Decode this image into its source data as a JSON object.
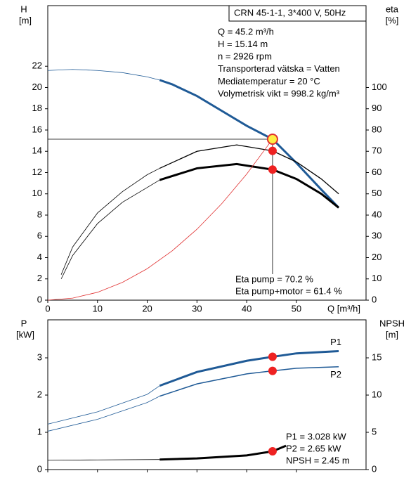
{
  "chart_data": [
    {
      "type": "line",
      "title": "CRN 45-1-1, 3*400 V, 50Hz",
      "ylabel": "H",
      "yunit": "[m]",
      "y2label": "eta",
      "y2unit": "[%]",
      "xlabel": "Q [m³/h]",
      "xlim": [
        0,
        64
      ],
      "xticks": [
        0,
        10,
        20,
        30,
        40,
        50
      ],
      "show_xtick_labels": true,
      "ylim": [
        0,
        27.7
      ],
      "yticks": [
        0,
        2,
        4,
        6,
        8,
        10,
        12,
        14,
        16,
        18,
        20,
        22
      ],
      "y2lim": [
        0,
        138.5
      ],
      "y2ticks": [
        0,
        10,
        20,
        30,
        40,
        50,
        60,
        70,
        80,
        90,
        100
      ],
      "info": [
        "Q = 45.2 m³/h",
        "H = 15.14 m",
        "n = 2926 rpm",
        "Transporterad vätska = Vatten",
        "Mediatemperatur = 20 °C",
        "Volymetrisk vikt = 998.2 kg/m³"
      ],
      "annotations": [
        "Eta pump = 70.2 %",
        "Eta pump+motor = 61.4 %"
      ],
      "series": [
        {
          "color": "#1f5a96",
          "width": 0.8,
          "x": [
            0,
            5,
            10,
            15,
            20,
            22.5
          ],
          "values": [
            21.6,
            21.7,
            21.6,
            21.4,
            21.0,
            20.7
          ]
        },
        {
          "color": "#1f5a96",
          "width": 3,
          "x": [
            22.5,
            25,
            30,
            35,
            40,
            45.2,
            50,
            55,
            58.5
          ],
          "values": [
            20.7,
            20.3,
            19.2,
            17.8,
            16.4,
            15.14,
            12.9,
            10.4,
            8.7
          ]
        },
        {
          "color": "#000000",
          "width": 0.8,
          "axis": "y2",
          "x": [
            2.7,
            5,
            10,
            15,
            20,
            22.5
          ],
          "values": [
            12,
            25,
            41,
            51,
            59,
            62
          ]
        },
        {
          "color": "#000000",
          "width": 1.3,
          "axis": "y2",
          "x": [
            22.5,
            30,
            38,
            45.2,
            50,
            55,
            58.5
          ],
          "values": [
            62,
            70,
            73,
            70.2,
            65,
            57,
            50
          ]
        },
        {
          "color": "#000000",
          "width": 0.8,
          "axis": "y2",
          "x": [
            2.7,
            5,
            10,
            15,
            20,
            22.5
          ],
          "values": [
            10,
            21,
            36,
            46,
            53,
            56.5
          ]
        },
        {
          "color": "#000000",
          "width": 3,
          "axis": "y2",
          "x": [
            22.5,
            30,
            38,
            45.2,
            50,
            55,
            58.5
          ],
          "values": [
            56.5,
            62,
            64,
            61.4,
            57,
            50,
            43.5
          ]
        },
        {
          "color": "#e03030",
          "width": 0.8,
          "x": [
            0,
            5,
            10,
            15,
            20,
            25,
            30,
            35,
            40,
            45.2
          ],
          "values": [
            0,
            0.19,
            0.74,
            1.67,
            2.96,
            4.63,
            6.67,
            9.08,
            11.86,
            15.14
          ]
        }
      ],
      "points": [
        {
          "x": 45.2,
          "y": 15.14,
          "color": "#ffee44",
          "guide": true
        },
        {
          "x": 45.2,
          "y": 70.2,
          "axis": "y2",
          "color": "#ee2222"
        },
        {
          "x": 45.2,
          "y": 61.4,
          "axis": "y2",
          "color": "#ee2222"
        }
      ]
    },
    {
      "type": "line",
      "ylabel": "P",
      "yunit": "[kW]",
      "y2label": "NPSH",
      "y2unit": "[m]",
      "xlim": [
        0,
        64
      ],
      "xticks": [
        0,
        10,
        20,
        30,
        40,
        50
      ],
      "show_xtick_labels": false,
      "ylim": [
        0,
        4.02
      ],
      "yticks": [
        0,
        1,
        2,
        3
      ],
      "y2lim": [
        0,
        20.1
      ],
      "y2ticks": [
        0,
        5,
        10,
        15
      ],
      "annotations": [
        "P1 = 3.028 kW",
        "P2 = 2.65 kW",
        "NPSH = 2.45 m"
      ],
      "series": [
        {
          "color": "#1f5a96",
          "width": 0.8,
          "x": [
            0,
            10,
            20,
            22.5
          ],
          "values": [
            1.22,
            1.55,
            2.02,
            2.25
          ]
        },
        {
          "name": "P1",
          "color": "#1f5a96",
          "width": 3,
          "x": [
            22.5,
            30,
            40,
            45.2,
            50,
            58.5
          ],
          "values": [
            2.25,
            2.62,
            2.92,
            3.028,
            3.12,
            3.18
          ]
        },
        {
          "color": "#1f5a96",
          "width": 0.8,
          "x": [
            0,
            10,
            20,
            22.5
          ],
          "values": [
            1.03,
            1.35,
            1.8,
            1.97
          ]
        },
        {
          "name": "P2",
          "color": "#1f5a96",
          "width": 1.5,
          "x": [
            22.5,
            30,
            40,
            45.2,
            50,
            58.5
          ],
          "values": [
            1.97,
            2.3,
            2.57,
            2.65,
            2.72,
            2.76
          ]
        },
        {
          "color": "#000000",
          "width": 0.8,
          "axis": "y2",
          "x": [
            0,
            10,
            22.5
          ],
          "values": [
            1.25,
            1.3,
            1.35
          ]
        },
        {
          "color": "#000000",
          "width": 3,
          "axis": "y2",
          "x": [
            22.5,
            30,
            40,
            45.2,
            47.9
          ],
          "values": [
            1.35,
            1.5,
            1.9,
            2.45,
            3.2
          ]
        }
      ],
      "points": [
        {
          "x": 45.2,
          "y": 3.028,
          "color": "#ee2222"
        },
        {
          "x": 45.2,
          "y": 2.65,
          "color": "#ee2222"
        },
        {
          "x": 45.2,
          "y": 2.45,
          "axis": "y2",
          "color": "#ee2222"
        }
      ]
    }
  ]
}
